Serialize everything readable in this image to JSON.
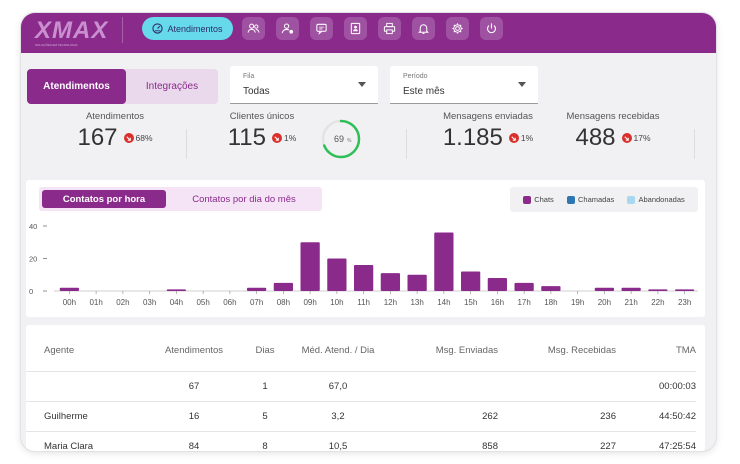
{
  "app": {
    "logo_text": "XMAX",
    "logo_sub": "SOLUÇÕES EM TECNOLOGIA"
  },
  "nav": {
    "active_label": "Atendimentos",
    "buttons": [
      "users-icon",
      "user-status-icon",
      "chat-icon",
      "contact-card-icon",
      "printer-icon",
      "bell-icon",
      "gear-icon",
      "power-icon"
    ]
  },
  "tabs": {
    "active": "Atendimentos",
    "inactive": "Integrações"
  },
  "filters": {
    "fila": {
      "label": "Fila",
      "value": "Todas"
    },
    "periodo": {
      "label": "Período",
      "value": "Este mês"
    }
  },
  "stats": {
    "atendimentos": {
      "title": "Atendimentos",
      "value": "167",
      "pct": "68%"
    },
    "clientes": {
      "title": "Clientes únicos",
      "value": "115",
      "pct": "1%",
      "gauge": "69",
      "gauge_unit": "%",
      "gauge_fraction": 0.69
    },
    "enviadas": {
      "title": "Mensagens enviadas",
      "value": "1.185",
      "pct": "1%"
    },
    "recebidas": {
      "title": "Mensagens recebidas",
      "value": "488",
      "pct": "17%"
    }
  },
  "chart_tabs": {
    "active": "Contatos por hora",
    "inactive": "Contatos por dia do mês"
  },
  "legend": [
    {
      "name": "Chats",
      "color": "#8a2b8c"
    },
    {
      "name": "Chamadas",
      "color": "#2c76b4"
    },
    {
      "name": "Abandonadas",
      "color": "#a8d8f0"
    }
  ],
  "chart_data": {
    "type": "bar",
    "categories": [
      "00h",
      "01h",
      "02h",
      "03h",
      "04h",
      "05h",
      "06h",
      "07h",
      "08h",
      "09h",
      "10h",
      "11h",
      "12h",
      "13h",
      "14h",
      "15h",
      "16h",
      "17h",
      "18h",
      "19h",
      "20h",
      "21h",
      "22h",
      "23h"
    ],
    "series": [
      {
        "name": "Chats",
        "values": [
          2,
          0,
          0,
          0,
          1,
          0,
          0,
          2,
          5,
          30,
          20,
          16,
          11,
          10,
          36,
          12,
          8,
          5,
          3,
          0,
          2,
          2,
          1,
          1
        ]
      }
    ],
    "yticks": [
      "0",
      "20",
      "40"
    ],
    "ylim": [
      0,
      40
    ],
    "grid": false
  },
  "table": {
    "headers": [
      "Agente",
      "Atendimentos",
      "Dias",
      "Méd. Atend. / Dia",
      "Msg. Enviadas",
      "Msg. Recebidas",
      "TMA"
    ],
    "rows": [
      [
        "",
        "67",
        "1",
        "67,0",
        "",
        "",
        "00:00:03"
      ],
      [
        "Guilherme",
        "16",
        "5",
        "3,2",
        "262",
        "236",
        "44:50:42"
      ],
      [
        "Maria Clara",
        "84",
        "8",
        "10,5",
        "858",
        "227",
        "47:25:54"
      ]
    ]
  }
}
